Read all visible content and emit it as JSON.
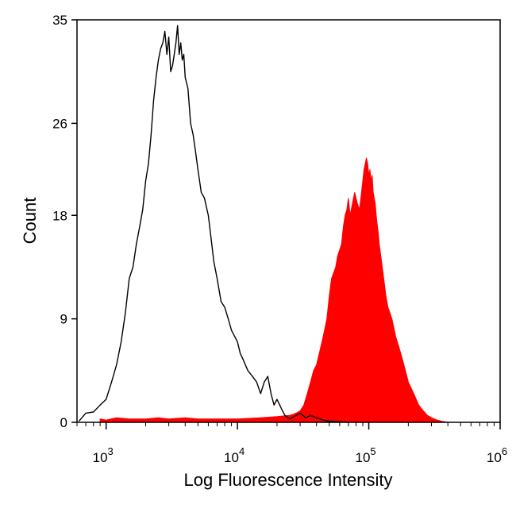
{
  "chart_data": {
    "type": "area",
    "title": "",
    "xlabel": "Log Fluorescence Intensity",
    "ylabel": "Count",
    "xscale": "log",
    "xlim": [
      600,
      1000000
    ],
    "ylim": [
      0,
      35
    ],
    "yticks": [
      {
        "value": 0,
        "label": "0"
      },
      {
        "value": 9,
        "label": "9"
      },
      {
        "value": 18,
        "label": "18"
      },
      {
        "value": 26,
        "label": "26"
      },
      {
        "value": 35,
        "label": "35"
      }
    ],
    "xticks": [
      {
        "value": 1000,
        "base": "10",
        "exp": "3"
      },
      {
        "value": 10000,
        "base": "10",
        "exp": "4"
      },
      {
        "value": 100000,
        "base": "10",
        "exp": "5"
      },
      {
        "value": 1000000,
        "base": "10",
        "exp": "6"
      }
    ],
    "grid": false,
    "series": [
      {
        "style": "outline",
        "color": "#000000",
        "x": [
          620,
          700,
          800,
          900,
          1000,
          1100,
          1200,
          1300,
          1400,
          1500,
          1600,
          1700,
          1800,
          1900,
          2000,
          2100,
          2200,
          2300,
          2400,
          2500,
          2600,
          2700,
          2800,
          2900,
          3000,
          3100,
          3200,
          3300,
          3400,
          3500,
          3600,
          3700,
          3800,
          3900,
          4000,
          4100,
          4200,
          4400,
          4600,
          4800,
          5000,
          5300,
          5600,
          6000,
          6300,
          6600,
          7000,
          7500,
          8000,
          8500,
          9000,
          9500,
          10000,
          10500,
          11000,
          12000,
          13000,
          14000,
          15000,
          16000,
          17000,
          18000,
          19000,
          20000,
          21000,
          22000,
          23000,
          25000,
          27000,
          30000,
          33000,
          36000,
          40000,
          45000,
          50000,
          60000,
          70000
        ],
        "y": [
          0.1,
          0.8,
          0.9,
          1.5,
          2.0,
          3.5,
          5.0,
          7.0,
          9.5,
          12.5,
          13.5,
          15.5,
          17.0,
          18.5,
          21.0,
          22.5,
          25.0,
          28.0,
          30.0,
          31.5,
          32.5,
          33.0,
          34.0,
          32.0,
          33.5,
          30.5,
          31.0,
          32.0,
          33.0,
          34.5,
          32.0,
          33.0,
          31.5,
          32.0,
          30.0,
          29.5,
          29.0,
          26.0,
          25.0,
          23.5,
          22.0,
          20.0,
          19.5,
          18.0,
          16.0,
          14.0,
          12.5,
          10.5,
          10.0,
          9.0,
          8.0,
          7.5,
          7.0,
          6.0,
          5.5,
          4.5,
          4.0,
          3.5,
          2.5,
          3.5,
          4.0,
          2.5,
          1.5,
          2.0,
          1.5,
          1.0,
          0.6,
          0.3,
          0.5,
          0.8,
          0.4,
          0.6,
          0.4,
          0.2,
          0.1,
          0.05,
          0.0
        ]
      },
      {
        "style": "filled",
        "color": "#ff0000",
        "x": [
          900,
          1000,
          1200,
          1500,
          2000,
          2500,
          3000,
          4000,
          5000,
          7000,
          10000,
          15000,
          20000,
          25000,
          28000,
          30000,
          32000,
          34000,
          36000,
          38000,
          40000,
          42000,
          44000,
          46000,
          48000,
          50000,
          52000,
          54000,
          56000,
          58000,
          60000,
          62000,
          64000,
          66000,
          68000,
          70000,
          72000,
          75000,
          78000,
          80000,
          82000,
          85000,
          88000,
          90000,
          92000,
          94000,
          96000,
          98000,
          100000,
          102000,
          104000,
          106000,
          108000,
          110000,
          112000,
          115000,
          118000,
          120000,
          125000,
          130000,
          135000,
          140000,
          145000,
          150000,
          160000,
          170000,
          180000,
          190000,
          200000,
          220000,
          240000,
          260000,
          280000,
          300000,
          330000,
          360000,
          400000
        ],
        "y": [
          0.3,
          0.2,
          0.4,
          0.3,
          0.3,
          0.4,
          0.3,
          0.4,
          0.3,
          0.3,
          0.3,
          0.4,
          0.5,
          0.6,
          0.8,
          1.0,
          1.5,
          2.5,
          3.5,
          4.5,
          5.0,
          6.0,
          7.0,
          8.0,
          9.0,
          11.0,
          12.5,
          13.0,
          13.5,
          14.5,
          15.0,
          15.5,
          17.0,
          18.0,
          18.5,
          19.5,
          18.0,
          19.0,
          20.0,
          19.5,
          19.0,
          18.5,
          20.0,
          21.0,
          22.0,
          22.5,
          23.0,
          22.5,
          21.5,
          22.0,
          21.0,
          21.5,
          20.0,
          19.5,
          19.0,
          17.5,
          16.5,
          15.5,
          14.0,
          12.5,
          11.0,
          10.0,
          9.5,
          9.0,
          7.5,
          6.5,
          5.5,
          4.5,
          3.5,
          2.5,
          1.5,
          1.0,
          0.6,
          0.4,
          0.2,
          0.1,
          0.0
        ]
      }
    ]
  }
}
